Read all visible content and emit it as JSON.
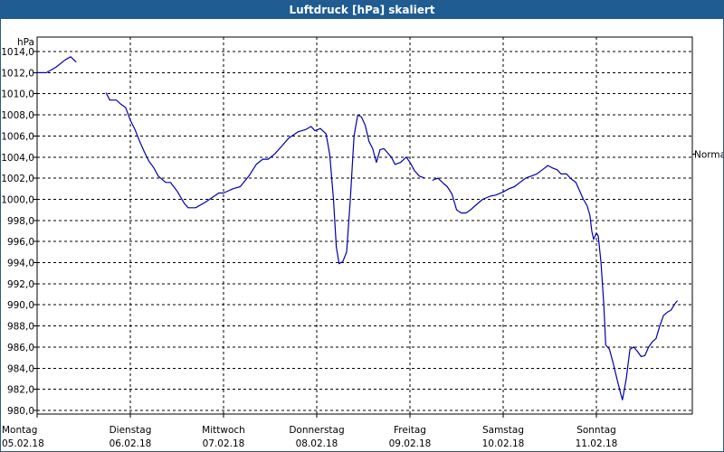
{
  "window": {
    "title": "Luftdruck [hPa] skaliert"
  },
  "chart_data": {
    "type": "line",
    "title": "Luftdruck [hPa] skaliert",
    "ylabel": "hPa",
    "ylim": [
      980,
      1014
    ],
    "xlim": [
      0,
      7
    ],
    "grid": true,
    "y_ticks": [
      "980,0",
      "982,0",
      "984,0",
      "986,0",
      "988,0",
      "990,0",
      "992,0",
      "994,0",
      "996,0",
      "998,0",
      "1000,0",
      "1002,0",
      "1004,0",
      "1006,0",
      "1008,0",
      "1010,0",
      "1012,0",
      "1014,0"
    ],
    "x_tick_labels": [
      {
        "day": "Montag",
        "date": "05.02.18"
      },
      {
        "day": "Dienstag",
        "date": "06.02.18"
      },
      {
        "day": "Mittwoch",
        "date": "07.02.18"
      },
      {
        "day": "Donnerstag",
        "date": "08.02.18"
      },
      {
        "day": "Freitag",
        "date": "09.02.18"
      },
      {
        "day": "Samstag",
        "date": "10.02.18"
      },
      {
        "day": "Sonntag",
        "date": "11.02.18"
      }
    ],
    "annotation": {
      "label": "Normal",
      "value": 1004.3
    },
    "series": [
      {
        "color": "#0000aa",
        "segments": [
          [
            [
              0.0,
              1012.0
            ],
            [
              0.1,
              1012.0
            ],
            [
              0.2,
              1012.5
            ],
            [
              0.3,
              1013.2
            ],
            [
              0.36,
              1013.5
            ],
            [
              0.42,
              1013.0
            ]
          ],
          [
            [
              0.74,
              1010.1
            ],
            [
              0.78,
              1009.4
            ],
            [
              0.85,
              1009.4
            ],
            [
              0.9,
              1009.0
            ],
            [
              0.95,
              1008.7
            ],
            [
              1.0,
              1007.5
            ],
            [
              1.05,
              1006.6
            ],
            [
              1.1,
              1005.5
            ],
            [
              1.15,
              1004.5
            ],
            [
              1.2,
              1003.6
            ],
            [
              1.25,
              1003.0
            ],
            [
              1.3,
              1002.2
            ],
            [
              1.38,
              1001.6
            ],
            [
              1.43,
              1001.6
            ],
            [
              1.5,
              1000.8
            ],
            [
              1.58,
              999.6
            ],
            [
              1.62,
              999.2
            ],
            [
              1.7,
              999.2
            ],
            [
              1.8,
              999.7
            ],
            [
              1.9,
              1000.3
            ],
            [
              1.95,
              1000.6
            ],
            [
              2.0,
              1000.6
            ],
            [
              2.1,
              1001.0
            ],
            [
              2.18,
              1001.2
            ],
            [
              2.28,
              1002.3
            ],
            [
              2.35,
              1003.3
            ],
            [
              2.42,
              1003.8
            ],
            [
              2.48,
              1003.8
            ],
            [
              2.55,
              1004.3
            ],
            [
              2.62,
              1005.0
            ],
            [
              2.7,
              1005.8
            ],
            [
              2.8,
              1006.4
            ],
            [
              2.88,
              1006.6
            ],
            [
              2.94,
              1006.9
            ],
            [
              2.98,
              1006.5
            ],
            [
              3.04,
              1006.7
            ],
            [
              3.1,
              1006.2
            ],
            [
              3.14,
              1004.2
            ],
            [
              3.18,
              1000.0
            ],
            [
              3.21,
              995.5
            ],
            [
              3.24,
              993.9
            ],
            [
              3.28,
              994.1
            ],
            [
              3.32,
              995.0
            ],
            [
              3.36,
              1000.0
            ],
            [
              3.4,
              1006.0
            ],
            [
              3.44,
              1008.0
            ],
            [
              3.48,
              1007.8
            ],
            [
              3.52,
              1007.0
            ],
            [
              3.56,
              1005.5
            ],
            [
              3.6,
              1004.8
            ],
            [
              3.64,
              1003.5
            ],
            [
              3.68,
              1004.7
            ],
            [
              3.72,
              1004.8
            ],
            [
              3.76,
              1004.4
            ],
            [
              3.8,
              1004.0
            ],
            [
              3.84,
              1003.3
            ],
            [
              3.9,
              1003.5
            ],
            [
              3.96,
              1004.0
            ],
            [
              4.0,
              1003.5
            ],
            [
              4.05,
              1002.7
            ],
            [
              4.1,
              1002.2
            ],
            [
              4.16,
              1002.0
            ]
          ],
          [
            [
              4.24,
              1001.8
            ],
            [
              4.3,
              1002.0
            ],
            [
              4.36,
              1001.5
            ],
            [
              4.4,
              1001.2
            ],
            [
              4.45,
              1000.5
            ],
            [
              4.5,
              999.0
            ],
            [
              4.55,
              998.7
            ],
            [
              4.6,
              998.7
            ],
            [
              4.65,
              999.0
            ],
            [
              4.7,
              999.4
            ],
            [
              4.78,
              1000.0
            ],
            [
              4.86,
              1000.3
            ],
            [
              4.92,
              1000.4
            ],
            [
              5.0,
              1000.7
            ],
            [
              5.06,
              1001.0
            ],
            [
              5.12,
              1001.2
            ],
            [
              5.18,
              1001.6
            ],
            [
              5.24,
              1002.0
            ],
            [
              5.3,
              1002.2
            ],
            [
              5.36,
              1002.4
            ],
            [
              5.42,
              1002.8
            ],
            [
              5.48,
              1003.2
            ],
            [
              5.52,
              1003.0
            ],
            [
              5.58,
              1002.8
            ],
            [
              5.62,
              1002.4
            ],
            [
              5.68,
              1002.4
            ],
            [
              5.72,
              1002.0
            ],
            [
              5.78,
              1001.6
            ],
            [
              5.82,
              1000.8
            ],
            [
              5.86,
              1000.0
            ],
            [
              5.9,
              999.4
            ],
            [
              5.93,
              998.5
            ],
            [
              5.95,
              997.0
            ],
            [
              5.97,
              996.2
            ],
            [
              6.0,
              996.8
            ],
            [
              6.02,
              996.5
            ],
            [
              6.05,
              994.0
            ],
            [
              6.08,
              990.0
            ],
            [
              6.1,
              986.2
            ],
            [
              6.14,
              985.8
            ],
            [
              6.18,
              984.5
            ],
            [
              6.22,
              983.0
            ],
            [
              6.26,
              981.6
            ],
            [
              6.28,
              981.0
            ],
            [
              6.32,
              983.0
            ],
            [
              6.36,
              985.8
            ],
            [
              6.4,
              986.0
            ],
            [
              6.44,
              985.6
            ],
            [
              6.48,
              985.1
            ],
            [
              6.52,
              985.2
            ],
            [
              6.56,
              986.0
            ],
            [
              6.6,
              986.5
            ],
            [
              6.64,
              986.8
            ],
            [
              6.68,
              988.0
            ],
            [
              6.72,
              989.0
            ],
            [
              6.76,
              989.3
            ],
            [
              6.8,
              989.5
            ],
            [
              6.85,
              990.2
            ],
            [
              6.87,
              990.4
            ]
          ]
        ]
      }
    ]
  }
}
